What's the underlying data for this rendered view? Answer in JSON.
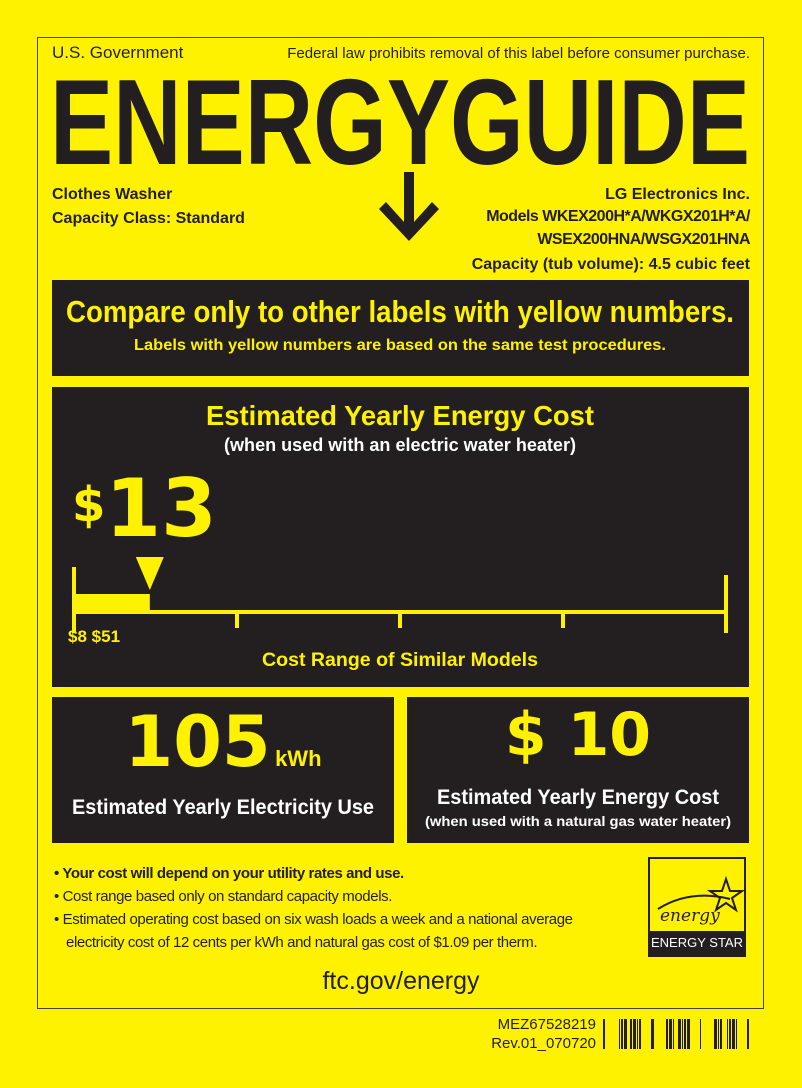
{
  "header": {
    "left": "U.S. Government",
    "right": "Federal law prohibits removal of this label before consumer purchase.",
    "logo": "ENERGYGUIDE"
  },
  "product": {
    "type": "Clothes Washer",
    "capacity_class": "Capacity Class: Standard",
    "maker": "LG Electronics Inc.",
    "models_line1": "Models WKEX200H*A/WKGX201H*A/",
    "models_line2": "WSEX200HNA/WSGX201HNA",
    "capacity_label": "Capacity (tub volume):",
    "capacity_value": "4.5 cubic feet"
  },
  "compare": {
    "title": "Compare only to other labels with yellow numbers.",
    "subtitle": "Labels with yellow numbers are based on the same test procedures."
  },
  "cost": {
    "title": "Estimated Yearly Energy Cost",
    "subtitle": "(when used with an electric water heater)",
    "currency": "$",
    "value": "13",
    "range_low": "$8",
    "range_high": "$51",
    "range_label": "Cost Range of Similar Models",
    "range_min": 8,
    "range_max": 51,
    "marker": 13
  },
  "electricity": {
    "value": "105",
    "unit": "kWh",
    "label": "Estimated Yearly Electricity Use"
  },
  "gas": {
    "currency": "$",
    "value": "10",
    "label": "Estimated Yearly Energy Cost",
    "sublabel": "(when used with a natural gas water heater)"
  },
  "notes": [
    "• Your cost will depend on your utility rates and use.",
    "• Cost range based only on standard capacity models.",
    "• Estimated operating cost based on six wash loads a week and a national average",
    "electricity cost of 12 cents per kWh and natural gas cost of $1.09 per therm."
  ],
  "footer_url": "ftc.gov/energy",
  "energy_star": {
    "script": "energy",
    "label": "ENERGY STAR"
  },
  "part": {
    "number": "MEZ67528219",
    "revision": "Rev.01_070720"
  },
  "colors": {
    "yellow": "#fff200",
    "dark": "#231f20"
  }
}
